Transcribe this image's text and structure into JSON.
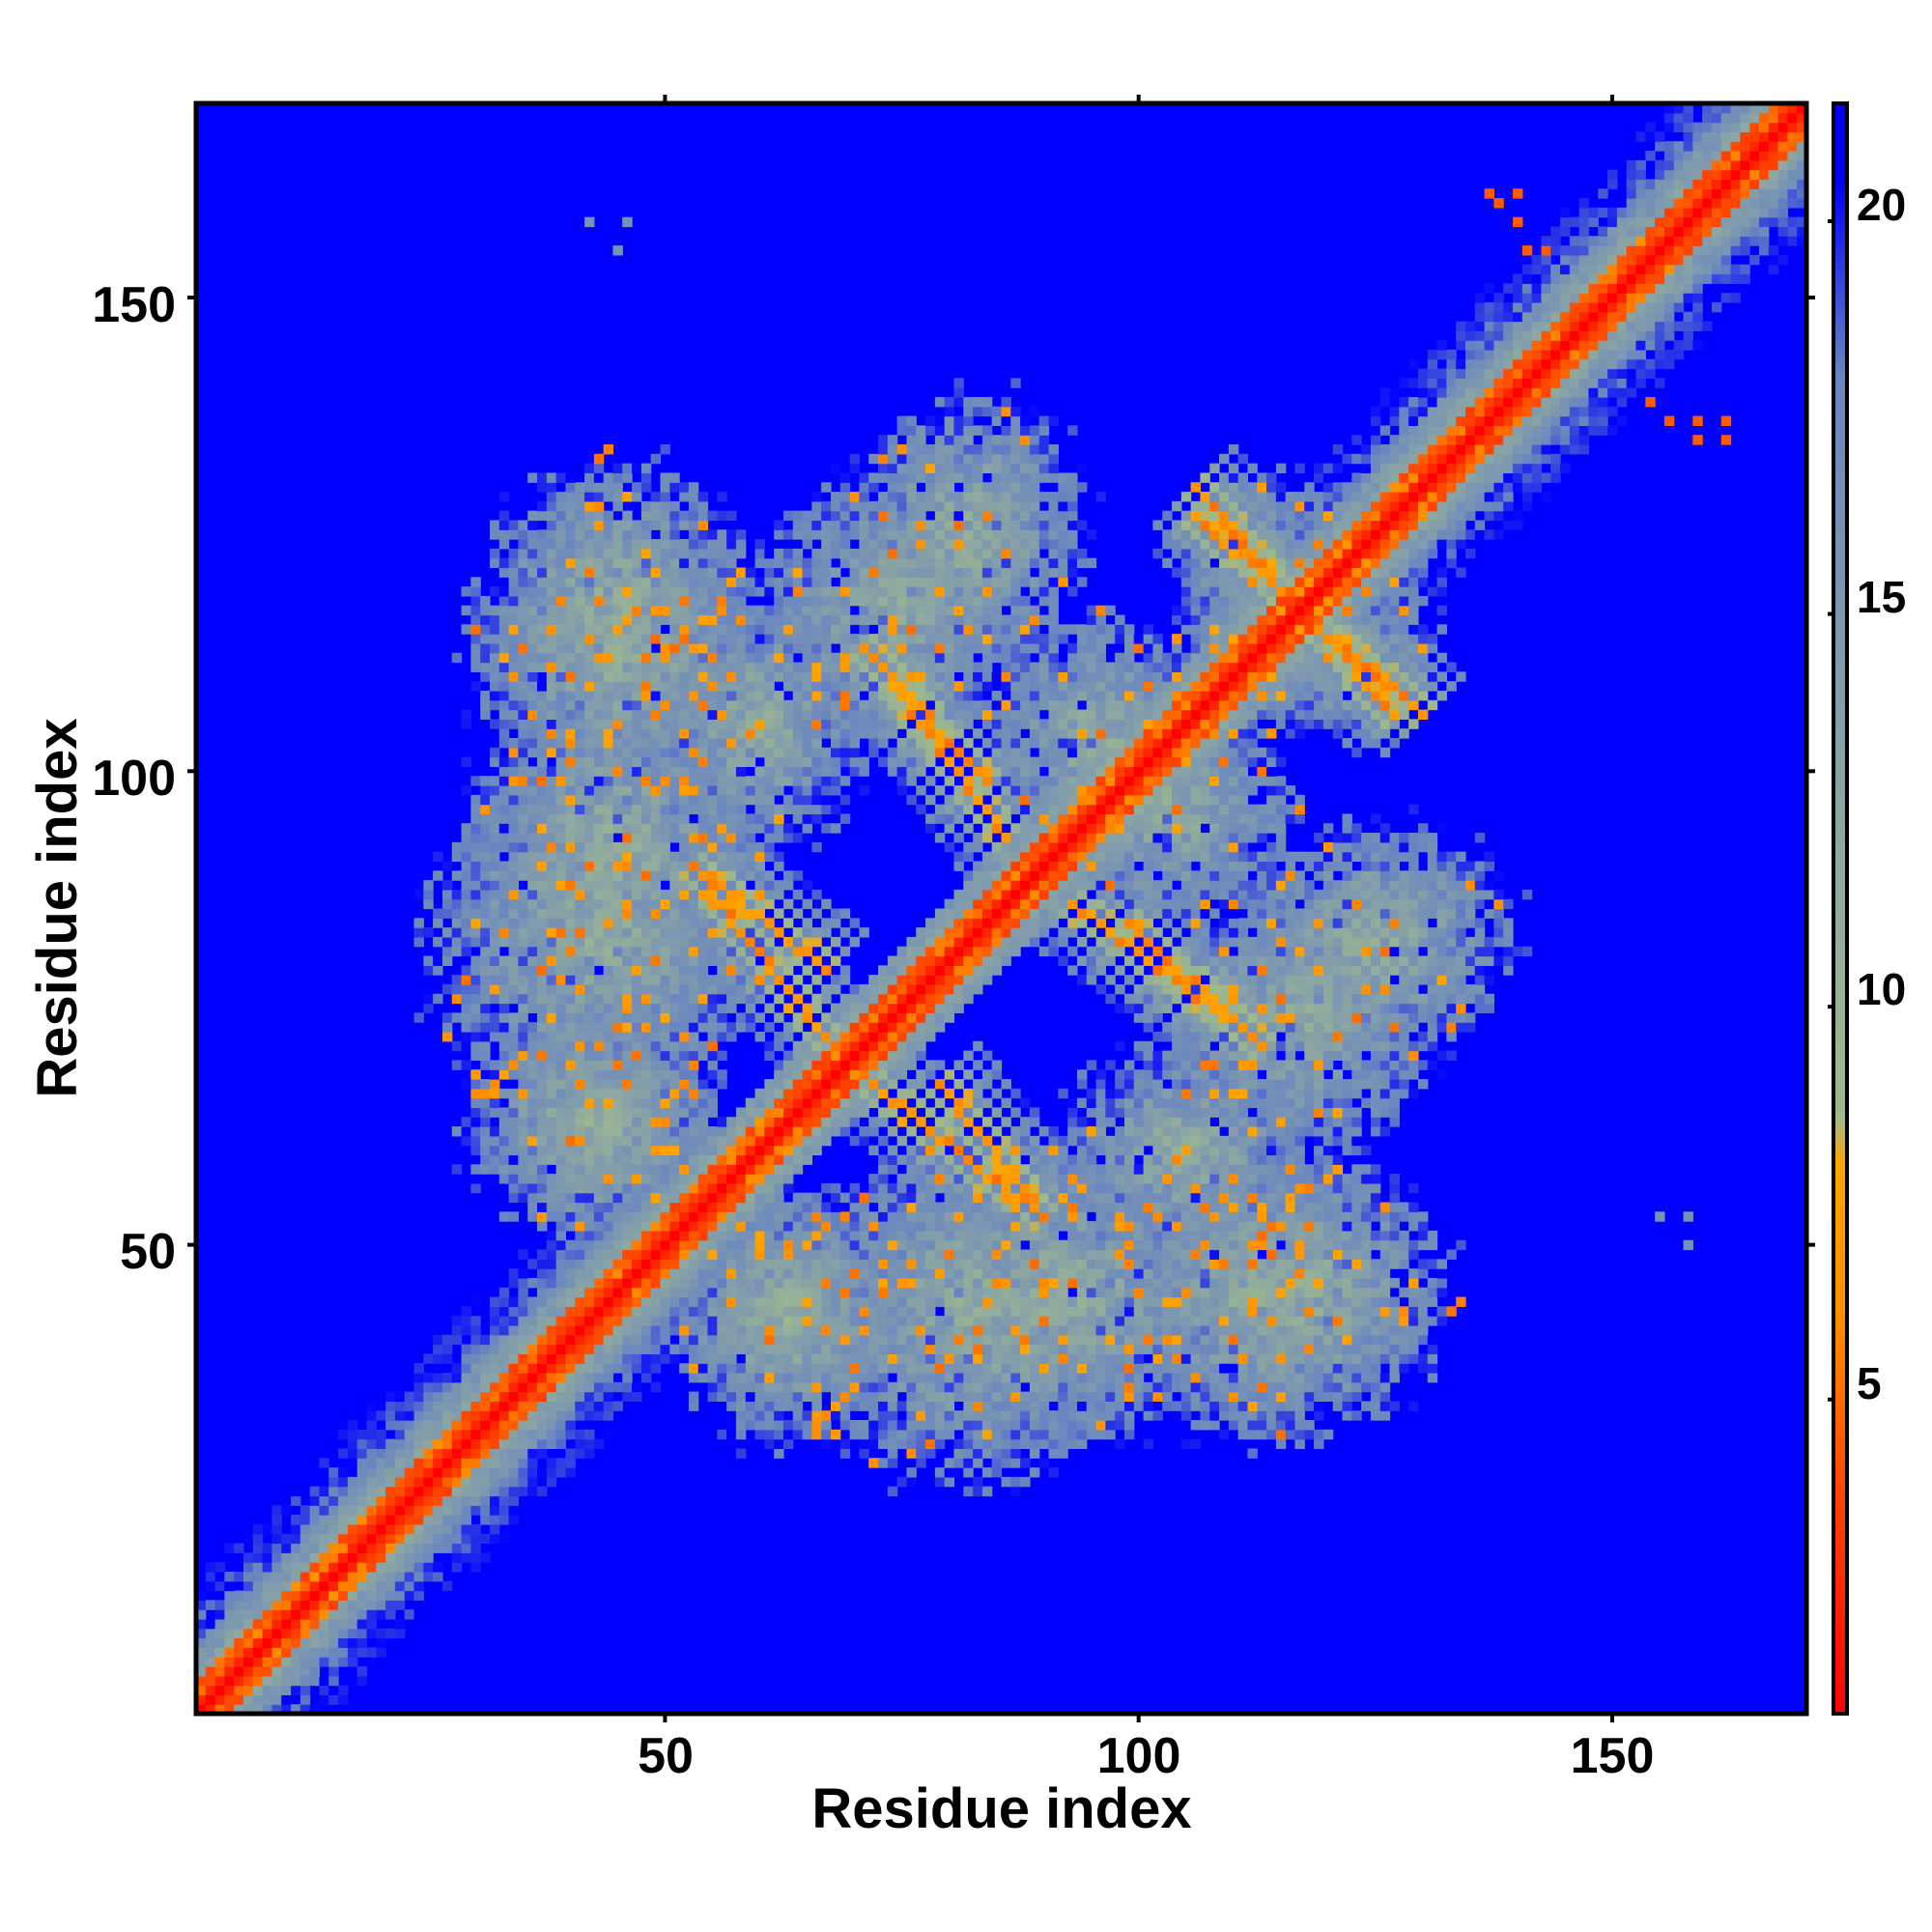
{
  "chart_data": {
    "type": "heatmap",
    "title": "",
    "xlabel": "Residue index",
    "ylabel": "Residue index",
    "xlim": [
      1,
      170
    ],
    "ylim": [
      1,
      170
    ],
    "x_ticks": [
      "50",
      "100",
      "150"
    ],
    "y_ticks": [
      "50",
      "100",
      "150"
    ],
    "grid": false,
    "colorbar": {
      "position": "right",
      "range": [
        1,
        21.5
      ],
      "ticks": [
        "5",
        "10",
        "15",
        "20"
      ],
      "stops": [
        {
          "value": 1,
          "color": "#ff0000"
        },
        {
          "value": 4,
          "color": "#ff4a00"
        },
        {
          "value": 6,
          "color": "#ff8c00"
        },
        {
          "value": 8,
          "color": "#ffa500"
        },
        {
          "value": 8.6,
          "color": "#9fb98a"
        },
        {
          "value": 12,
          "color": "#8fa9a0"
        },
        {
          "value": 18,
          "color": "#6a86c0"
        },
        {
          "value": 20.5,
          "color": "#0000ff"
        }
      ]
    },
    "background_value": 21,
    "colors": {
      "far": "#0000ff",
      "close": "#ff0000",
      "medium": "#ffa500",
      "halo": "#9fb98a"
    },
    "features": [
      {
        "kind": "diagonal",
        "from": 1,
        "to": 170,
        "value": 1
      },
      {
        "kind": "antiparallel",
        "x_range": [
          67,
          53
        ],
        "y_range": [
          79,
          90
        ],
        "value": 5.5
      },
      {
        "kind": "antiparallel",
        "x_range": [
          72,
          87
        ],
        "y_range": [
          67,
          55
        ],
        "value": 5.5
      },
      {
        "kind": "antiparallel",
        "x_range": [
          71,
          84
        ],
        "y_range": [
          113,
          99
        ],
        "value": 5.5
      },
      {
        "kind": "antiparallel",
        "x_range": [
          93,
          109
        ],
        "y_range": [
          86,
          74
        ],
        "value": 5.5
      },
      {
        "kind": "antiparallel",
        "x_range": [
          106,
          115
        ],
        "y_range": [
          127,
          119
        ],
        "value": 5.5
      },
      {
        "kind": "antiparallel",
        "x_range": [
          121,
          130
        ],
        "y_range": [
          114,
          106
        ],
        "value": 5.5
      },
      {
        "kind": "blob",
        "center": [
          45,
          112
        ],
        "radius": [
          14,
          12
        ],
        "value": 11
      },
      {
        "kind": "blob",
        "center": [
          74,
          118
        ],
        "radius": [
          12,
          12
        ],
        "value": 11
      },
      {
        "kind": "blob",
        "center": [
          43,
          83
        ],
        "radius": [
          16,
          16
        ],
        "value": 11
      },
      {
        "kind": "blob",
        "center": [
          42,
          63
        ],
        "radius": [
          12,
          10
        ],
        "value": 11
      },
      {
        "kind": "blob",
        "center": [
          63,
          44
        ],
        "radius": [
          12,
          10
        ],
        "value": 11
      },
      {
        "kind": "blob",
        "center": [
          92,
          45
        ],
        "radius": [
          16,
          14
        ],
        "value": 11
      },
      {
        "kind": "blob",
        "center": [
          118,
          45
        ],
        "radius": [
          13,
          13
        ],
        "value": 11
      },
      {
        "kind": "blob",
        "center": [
          125,
          82
        ],
        "radius": [
          13,
          11
        ],
        "value": 11
      },
      {
        "kind": "blob",
        "center": [
          105,
          60
        ],
        "radius": [
          12,
          10
        ],
        "value": 11
      },
      {
        "kind": "blob",
        "center": [
          96,
          103
        ],
        "radius": [
          11,
          12
        ],
        "value": 11
      },
      {
        "kind": "blob",
        "center": [
          116,
          118
        ],
        "radius": [
          10,
          11
        ],
        "value": 11
      },
      {
        "kind": "spots",
        "points": [
          [
            137,
            161
          ],
          [
            140,
            161
          ],
          [
            138,
            160
          ],
          [
            140,
            158
          ],
          [
            141,
            155
          ],
          [
            143,
            155
          ],
          [
            154,
            139
          ],
          [
            156,
            137
          ],
          [
            159,
            137
          ],
          [
            162,
            137
          ],
          [
            159,
            135
          ],
          [
            162,
            135
          ]
        ],
        "value": 4.5
      },
      {
        "kind": "spots",
        "points": [
          [
            42,
            158
          ],
          [
            46,
            158
          ],
          [
            45,
            155
          ],
          [
            155,
            53
          ],
          [
            158,
            53
          ],
          [
            158,
            50
          ]
        ],
        "value": 16
      }
    ]
  }
}
